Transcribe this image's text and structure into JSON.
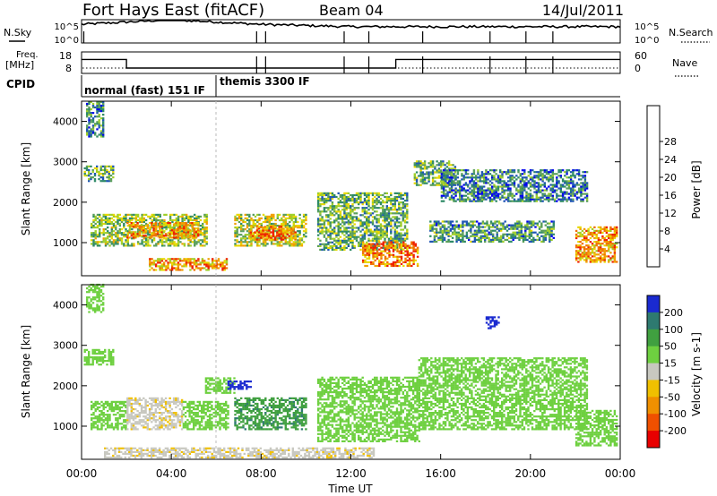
{
  "header": {
    "station": "Fort Hays East (fitACF)",
    "beam": "Beam 04",
    "date": "14/Jul/2011"
  },
  "status": {
    "nsky_label": "N.Sky",
    "nsearch_label": "N.Search",
    "noise_ticks": [
      "10^5",
      "10^0"
    ],
    "freq_label_line1": "Freq.",
    "freq_label_line2": "[MHz]",
    "freq_ticks": [
      "18",
      "8"
    ],
    "nave_label": "Nave",
    "nave_ticks": [
      "60",
      "0"
    ],
    "cpid_label": "CPID",
    "modes": [
      "normal (fast) 151 IF",
      "themis 3300 IF"
    ]
  },
  "x_axis": {
    "label": "Time UT",
    "ticks": [
      "00:00",
      "04:00",
      "08:00",
      "12:00",
      "16:00",
      "20:00",
      "00:00"
    ]
  },
  "power_panel": {
    "ylabel": "Slant Range [km]",
    "yticks": [
      "1000",
      "2000",
      "3000",
      "4000"
    ],
    "colorbar_label": "Power [dB]",
    "colorbar_ticks": [
      "4",
      "8",
      "12",
      "16",
      "20",
      "24",
      "28"
    ],
    "colors": [
      "#0000ee",
      "#1e55b4",
      "#2e8a66",
      "#5a9e5a",
      "#9fcf2a",
      "#e8d800",
      "#f0a000",
      "#f07000",
      "#ee2000"
    ]
  },
  "velocity_panel": {
    "ylabel": "Slant Range [km]",
    "yticks": [
      "1000",
      "2000",
      "3000",
      "4000"
    ],
    "colorbar_label": "Velocity [m s-1]",
    "colorbar_ticks": [
      "200",
      "100",
      "50",
      "15",
      "-15",
      "-50",
      "-100",
      "-200"
    ],
    "colors": [
      "#1a2ad0",
      "#2e7a70",
      "#40a040",
      "#6ed040",
      "#c8c8c0",
      "#f0c000",
      "#f09000",
      "#f05000",
      "#e80000"
    ]
  },
  "chart_data": [
    {
      "type": "line",
      "title": "N.Sky / N.Search",
      "x": [
        "00:00",
        "04:00",
        "08:00",
        "12:00",
        "16:00",
        "20:00",
        "00:00"
      ],
      "series": [
        {
          "name": "N.Sky",
          "values": [
            4.0,
            5.0,
            4.0,
            3.5,
            3.5,
            3.5,
            3.5
          ]
        }
      ],
      "ylim": [
        0,
        5
      ]
    },
    {
      "type": "line",
      "title": "Freq. [MHz] / Nave",
      "x": [
        "00:00",
        "02:00",
        "02:00",
        "14:00",
        "14:00",
        "24:00"
      ],
      "series": [
        {
          "name": "Freq.",
          "values": [
            14.5,
            14.5,
            10.5,
            10.5,
            14.5,
            14.5
          ]
        }
      ],
      "ylim": [
        8,
        18
      ]
    },
    {
      "type": "heatmap",
      "title": "Power [dB]",
      "xlabel": "Time UT",
      "ylabel": "Slant Range [km]",
      "xlim": [
        0,
        24
      ],
      "ylim": [
        180,
        4500
      ],
      "zlim": [
        0,
        30
      ],
      "regions": [
        {
          "t0": 0.1,
          "t1": 1.4,
          "r0": 2500,
          "r1": 2900,
          "power": 12
        },
        {
          "t0": 0.2,
          "t1": 1.0,
          "r0": 3600,
          "r1": 4500,
          "power": 8
        },
        {
          "t0": 0.4,
          "t1": 5.6,
          "r0": 900,
          "r1": 1700,
          "power": 14
        },
        {
          "t0": 2.0,
          "t1": 5.2,
          "r0": 1100,
          "r1": 1500,
          "power": 22
        },
        {
          "t0": 6.8,
          "t1": 10.0,
          "r0": 900,
          "r1": 1700,
          "power": 16
        },
        {
          "t0": 7.5,
          "t1": 9.5,
          "r0": 1050,
          "r1": 1400,
          "power": 24
        },
        {
          "t0": 3.0,
          "t1": 6.5,
          "r0": 300,
          "r1": 600,
          "power": 22
        },
        {
          "t0": 10.5,
          "t1": 14.5,
          "r0": 800,
          "r1": 2200,
          "power": 12
        },
        {
          "t0": 12.5,
          "t1": 15.0,
          "r0": 400,
          "r1": 1000,
          "power": 24
        },
        {
          "t0": 14.8,
          "t1": 16.6,
          "r0": 2400,
          "r1": 3000,
          "power": 12
        },
        {
          "t0": 15.5,
          "t1": 21.0,
          "r0": 1000,
          "r1": 1500,
          "power": 10
        },
        {
          "t0": 16.0,
          "t1": 22.5,
          "r0": 2000,
          "r1": 2800,
          "power": 8
        },
        {
          "t0": 22.0,
          "t1": 23.8,
          "r0": 500,
          "r1": 1400,
          "power": 22
        }
      ]
    },
    {
      "type": "heatmap",
      "title": "Velocity [m s-1]",
      "xlabel": "Time UT",
      "ylabel": "Slant Range [km]",
      "xlim": [
        0,
        24
      ],
      "ylim": [
        180,
        4500
      ],
      "zlim": [
        -200,
        200
      ],
      "regions": [
        {
          "t0": 0.1,
          "t1": 1.4,
          "r0": 2500,
          "r1": 2900,
          "velocity": 0
        },
        {
          "t0": 0.2,
          "t1": 1.0,
          "r0": 3800,
          "r1": 4500,
          "velocity": 0
        },
        {
          "t0": 0.4,
          "t1": 2.0,
          "r0": 900,
          "r1": 1600,
          "velocity": 0
        },
        {
          "t0": 2.0,
          "t1": 4.5,
          "r0": 900,
          "r1": 1700,
          "velocity": -40
        },
        {
          "t0": 4.5,
          "t1": 6.5,
          "r0": 900,
          "r1": 1600,
          "velocity": 0
        },
        {
          "t0": 5.5,
          "t1": 6.8,
          "r0": 1800,
          "r1": 2200,
          "velocity": 0
        },
        {
          "t0": 6.8,
          "t1": 10.0,
          "r0": 900,
          "r1": 1700,
          "velocity": 40
        },
        {
          "t0": 6.5,
          "t1": 7.5,
          "r0": 1900,
          "r1": 2100,
          "velocity": 150
        },
        {
          "t0": 1.0,
          "t1": 13.0,
          "r0": 200,
          "r1": 450,
          "velocity": -40
        },
        {
          "t0": 10.5,
          "t1": 15.0,
          "r0": 600,
          "r1": 2200,
          "velocity": 0
        },
        {
          "t0": 15.0,
          "t1": 22.5,
          "r0": 900,
          "r1": 2700,
          "velocity": 0
        },
        {
          "t0": 18.0,
          "t1": 18.6,
          "r0": 3400,
          "r1": 3700,
          "velocity": 150
        },
        {
          "t0": 22.0,
          "t1": 23.8,
          "r0": 500,
          "r1": 1400,
          "velocity": 0
        }
      ]
    }
  ]
}
